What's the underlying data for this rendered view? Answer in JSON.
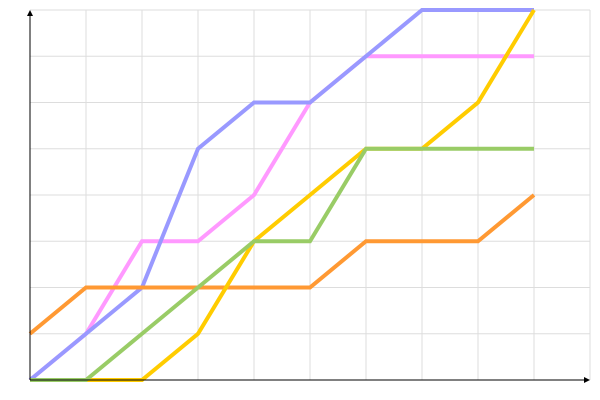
{
  "chart_data": {
    "type": "line",
    "title": "",
    "xlabel": "",
    "ylabel": "",
    "x": [
      0,
      1,
      2,
      3,
      4,
      5,
      6,
      7,
      8,
      9
    ],
    "xlim": [
      0,
      10
    ],
    "ylim": [
      0,
      8
    ],
    "grid": true,
    "legend": "none",
    "series": [
      {
        "color": "#ff99ff",
        "values": [
          0,
          1,
          3,
          3,
          4,
          6,
          7,
          7,
          7,
          7
        ]
      },
      {
        "color": "#9999ff",
        "values": [
          0,
          1,
          2,
          5,
          6,
          6,
          7,
          8,
          8,
          8
        ]
      },
      {
        "color": "#ff9933",
        "values": [
          1,
          2,
          2,
          2,
          2,
          2,
          3,
          3,
          3,
          4
        ]
      },
      {
        "color": "#ffcc00",
        "values": [
          0,
          0,
          0,
          1,
          3,
          4,
          5,
          5,
          6,
          8
        ]
      },
      {
        "color": "#99cc66",
        "values": [
          0,
          0,
          1,
          2,
          3,
          3,
          5,
          5,
          5,
          5
        ]
      }
    ]
  }
}
